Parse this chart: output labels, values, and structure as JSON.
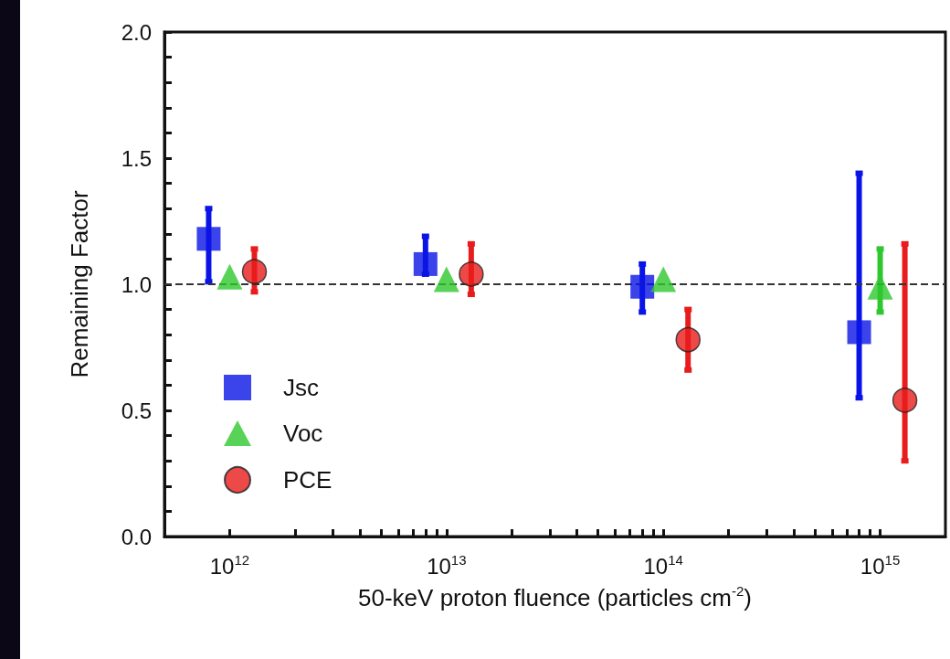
{
  "chart_data": {
    "type": "scatter",
    "xlabel": "50-keV proton fluence (particles cm$^{-2}$)",
    "ylabel": "Remaining Factor",
    "log": "x",
    "xlim": [
      500000000000.0,
      2000000000000000.0
    ],
    "ylim": [
      0,
      2
    ],
    "xticks": [
      {
        "value": 1000000000000.0,
        "label": "10$^{12}$"
      },
      {
        "value": 2000000000000.0,
        "label": null
      },
      {
        "value": 3000000000000.0,
        "label": null
      },
      {
        "value": 4000000000000.0,
        "label": null
      },
      {
        "value": 5000000000000.0,
        "label": null
      },
      {
        "value": 6000000000000.0,
        "label": null
      },
      {
        "value": 7000000000000.0,
        "label": null
      },
      {
        "value": 8000000000000.0,
        "label": null
      },
      {
        "value": 9000000000000.0,
        "label": null
      },
      {
        "value": 10000000000000.0,
        "label": "10$^{13}$"
      },
      {
        "value": 20000000000000.0,
        "label": null
      },
      {
        "value": 30000000000000.0,
        "label": null
      },
      {
        "value": 40000000000000.0,
        "label": null
      },
      {
        "value": 50000000000000.0,
        "label": null
      },
      {
        "value": 60000000000000.0,
        "label": null
      },
      {
        "value": 70000000000000.0,
        "label": null
      },
      {
        "value": 80000000000000.0,
        "label": null
      },
      {
        "value": 90000000000000.0,
        "label": null
      },
      {
        "value": 100000000000000.0,
        "label": "10$^{14}$"
      },
      {
        "value": 200000000000000.0,
        "label": null
      },
      {
        "value": 300000000000000.0,
        "label": null
      },
      {
        "value": 400000000000000.0,
        "label": null
      },
      {
        "value": 500000000000000.0,
        "label": null
      },
      {
        "value": 600000000000000.0,
        "label": null
      },
      {
        "value": 700000000000000.0,
        "label": null
      },
      {
        "value": 800000000000000.0,
        "label": null
      },
      {
        "value": 900000000000000.0,
        "label": null
      },
      {
        "value": 1000000000000000.0,
        "label": "10$^{15}$"
      }
    ],
    "yticks": [
      {
        "value": 0,
        "label": "0.0"
      },
      {
        "value": 0.1,
        "label": null
      },
      {
        "value": 0.2,
        "label": null
      },
      {
        "value": 0.3,
        "label": null
      },
      {
        "value": 0.4,
        "label": null
      },
      {
        "value": 0.5,
        "label": "0.5"
      },
      {
        "value": 0.6,
        "label": null
      },
      {
        "value": 0.7,
        "label": null
      },
      {
        "value": 0.8,
        "label": null
      },
      {
        "value": 0.9,
        "label": null
      },
      {
        "value": 1,
        "label": "1.0"
      },
      {
        "value": 1.1,
        "label": null
      },
      {
        "value": 1.2,
        "label": null
      },
      {
        "value": 1.3,
        "label": null
      },
      {
        "value": 1.4,
        "label": null
      },
      {
        "value": 1.5,
        "label": "1.5"
      },
      {
        "value": 1.6,
        "label": null
      },
      {
        "value": 1.7,
        "label": null
      },
      {
        "value": 1.8,
        "label": null
      },
      {
        "value": 1.9,
        "label": null
      },
      {
        "value": 2,
        "label": "2.0"
      }
    ],
    "series": [
      {
        "name": "Jsc",
        "color": "#0a14e6",
        "marker": "square",
        "x": [
          800000000000.0,
          8000000000000.0,
          80000000000000.0,
          800000000000000.0
        ],
        "values": [
          1.18,
          1.08,
          0.99,
          0.81
        ],
        "errors": [
          [
            1.01,
            1.3
          ],
          [
            1.04,
            1.19
          ],
          [
            0.89,
            1.08
          ],
          [
            0.55,
            1.44
          ]
        ]
      },
      {
        "name": "Voc",
        "color": "#2ec82e",
        "marker": "triangle",
        "x": [
          1000000000000.0,
          10000000000000.0,
          100000000000000.0,
          1000000000000000.0
        ],
        "values": [
          1.03,
          1.02,
          1.02,
          0.99
        ],
        "errors": [
          null,
          null,
          null,
          [
            0.89,
            1.14
          ]
        ]
      },
      {
        "name": "PCE",
        "color": "#e81c1c",
        "marker": "circle",
        "x": [
          1300000000000.0,
          13000000000000.0,
          130000000000000.0,
          1300000000000000.0
        ],
        "values": [
          1.05,
          1.04,
          0.78,
          0.54
        ],
        "errors": [
          [
            0.97,
            1.14
          ],
          [
            0.96,
            1.16
          ],
          [
            0.66,
            0.9
          ],
          [
            0.3,
            1.16
          ]
        ]
      }
    ],
    "ref_lines": [
      {
        "axis": "y",
        "value": 1,
        "line_style": "dashed",
        "color": "#333333"
      }
    ],
    "legend": "bottom left",
    "grid": false
  }
}
